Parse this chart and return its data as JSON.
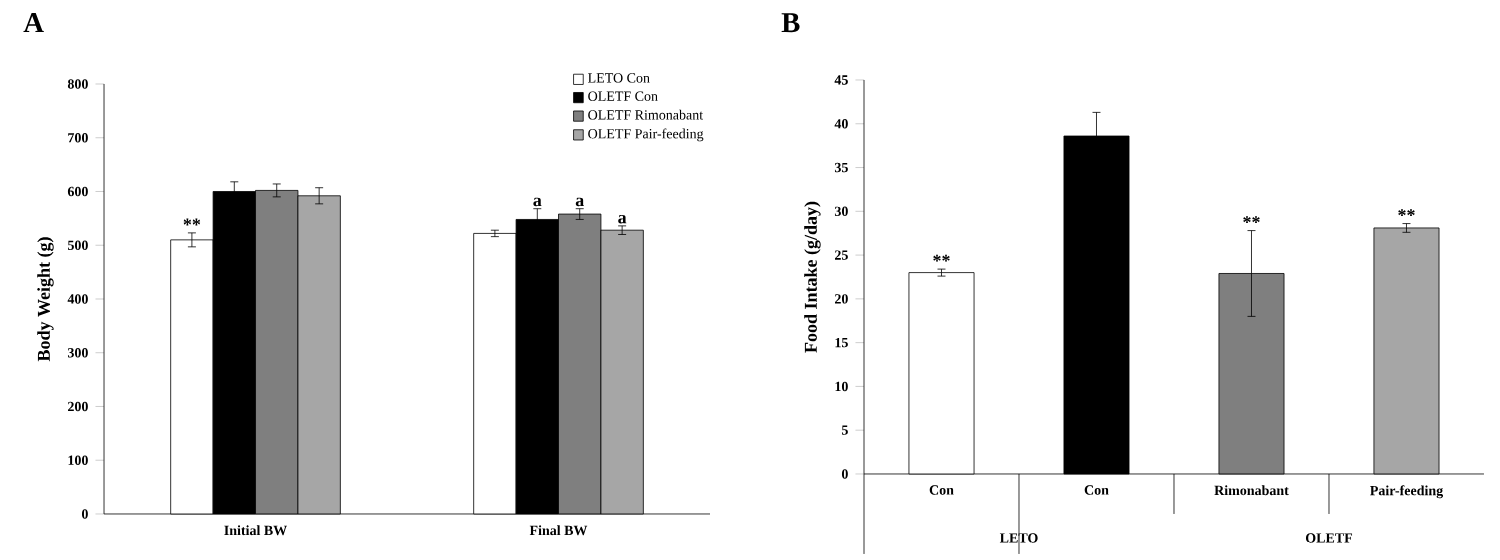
{
  "chart_data": [
    {
      "type": "bar",
      "title": "A",
      "ylabel": "Body Weight (g)",
      "categories": [
        "Initial BW",
        "Final BW"
      ],
      "ylim": [
        0,
        800
      ],
      "yticks": [
        0,
        100,
        200,
        300,
        400,
        500,
        600,
        700,
        800
      ],
      "legend": "top right",
      "grid": false,
      "series": [
        {
          "name": "LETO Con",
          "color": "#ffffff",
          "values": [
            510,
            522
          ],
          "errors": [
            13,
            6
          ],
          "value_labels": [
            "**",
            null
          ]
        },
        {
          "name": "OLETF Con",
          "color": "#000000",
          "values": [
            600,
            548
          ],
          "errors": [
            18,
            20
          ],
          "value_labels": [
            null,
            "a"
          ]
        },
        {
          "name": "OLETF Rimonabant",
          "color": "#7f7f7f",
          "values": [
            602,
            558
          ],
          "errors": [
            12,
            10
          ],
          "value_labels": [
            null,
            "a"
          ]
        },
        {
          "name": "OLETF Pair-feeding",
          "color": "#a6a6a6",
          "values": [
            592,
            528
          ],
          "errors": [
            15,
            8
          ],
          "value_labels": [
            null,
            "a"
          ]
        }
      ]
    },
    {
      "type": "bar",
      "title": "B",
      "ylabel": "Food Intake (g/day)",
      "categories": [
        "Con",
        "Con",
        "Rimonabant",
        "Pair-feeding"
      ],
      "ylim": [
        0,
        45
      ],
      "yticks": [
        0,
        5,
        10,
        15,
        20,
        25,
        30,
        35,
        40,
        45
      ],
      "grid": false,
      "values": [
        23.0,
        38.6,
        22.9,
        28.1
      ],
      "colors": [
        "#ffffff",
        "#000000",
        "#7f7f7f",
        "#a6a6a6"
      ],
      "errors": [
        0.4,
        2.7,
        4.9,
        0.5
      ],
      "value_labels": [
        "**",
        null,
        "**",
        "**"
      ],
      "annotations": [
        "LETO",
        "OLETF"
      ]
    }
  ]
}
